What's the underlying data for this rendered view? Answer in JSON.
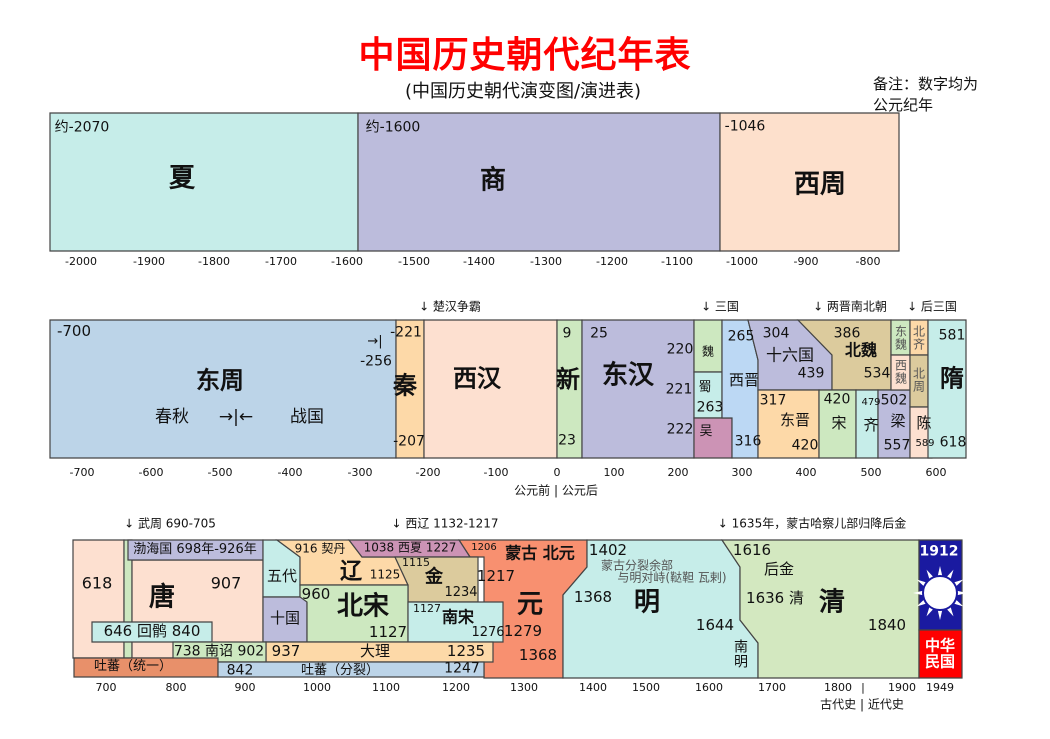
{
  "title": "中国历史朝代纪年表",
  "subtitle": "(中国历史朝代演变图/演进表)",
  "note": "备注：数字均为公元纪年",
  "row1": {
    "xia_start": "约-2070",
    "xia": "夏",
    "shang_start": "约-1600",
    "shang": "商",
    "xizhou_start": "-1046",
    "xizhou": "西周",
    "ticks": [
      "-2000",
      "-1900",
      "-1800",
      "-1700",
      "-1600",
      "-1500",
      "-1400",
      "-1300",
      "-1200",
      "-1100",
      "-1000",
      "-900",
      "-800"
    ]
  },
  "row2": {
    "annotations": [
      "↓ 楚汉争霸",
      "↓ 三国",
      "↓ 两晋南北朝",
      "↓ 后三国"
    ],
    "dongzhou_start": "-700",
    "dongzhou": "东周",
    "chunqiu": "春秋",
    "divider": "→|←",
    "zhanguo": "战国",
    "qin_arrow": "→|",
    "qin_unify": "-221",
    "zhou_end": "-256",
    "qin": "秦",
    "qin_end": "-207",
    "xihan": "西汉",
    "xin_start": "9",
    "xin": "新",
    "xin_end": "23",
    "donghan_start": "25",
    "donghan": "东汉",
    "wei_start": "220",
    "shu_start": "221",
    "wu_start": "222",
    "wei": "魏",
    "shu": "蜀",
    "shu_end": "263",
    "wu": "吴",
    "xijin_start": "265",
    "xijin": "西晋",
    "xijin_end": "316",
    "shiliuguo_start": "304",
    "shiliuguo": "十六国",
    "shiliuguo_end": "439",
    "beiwei_start": "386",
    "beiwei": "北魏",
    "beiwei_end": "534",
    "dongjin_start": "317",
    "dongjin": "东晋",
    "dongjin_end": "420",
    "song_start": "420",
    "song": "宋",
    "qi_start": "479",
    "qi": "齐",
    "liang_start": "502",
    "liang": "梁",
    "liang_end": "557",
    "dongwei": "东魏",
    "xiwei": "西魏",
    "beiqi": "北齐",
    "beizhou": "北周",
    "chen": "陈",
    "chen_end": "589",
    "sui_start": "581",
    "sui": "隋",
    "sui_end": "618",
    "era_label": "公元前 | 公元后",
    "ticks": [
      "-700",
      "-600",
      "-500",
      "-400",
      "-300",
      "-200",
      "-100",
      "0",
      "100",
      "200",
      "300",
      "400",
      "500",
      "600"
    ]
  },
  "row3": {
    "annotations": [
      "↓ 武周 690-705",
      "↓ 西辽 1132-1217",
      "↓ 1635年，蒙古哈察儿部归降后金"
    ],
    "tang_start": "618",
    "bohai": "渤海国 698年-926年",
    "tang": "唐",
    "tang_end": "907",
    "huihu": "646  回鹘  840",
    "nanzhao": "738 南诏 902",
    "tubo1": "吐蕃（统一）",
    "tubo2_start": "842",
    "tubo2": "吐蕃（分裂）",
    "tubo2_end": "1247",
    "wudai": "五代",
    "shiguo": "十国",
    "qidan": "916 契丹",
    "liao": "辽",
    "liao_end": "1125",
    "beisong_start": "960",
    "beisong": "北宋",
    "beisong_end": "1127",
    "xixia": "1038 西夏  1227",
    "jin_start": "1115",
    "jin": "金",
    "jin_end": "1234",
    "nansong_start": "1127",
    "nansong": "南宋",
    "nansong_end": "1276",
    "dali_start": "937",
    "dali": "大理",
    "dali_end": "1235",
    "mongol_start": "1206",
    "mongol": "蒙古  北元",
    "mongol_unify": "1217",
    "yuan": "元",
    "yuan_start": "1279",
    "yuan_end": "1368",
    "ming_mark": "1402",
    "mongol_split1": "蒙古分裂余部",
    "mongol_split2": "与明对峙(鞑靼  瓦剌)",
    "ming_start": "1368",
    "ming": "明",
    "ming_end": "1644",
    "nanming": "南明",
    "houjin_start": "1616",
    "houjin": "后金",
    "qing_rename": "1636  清",
    "qing": "清",
    "qing_mark": "1840",
    "roc_start": "1912",
    "roc": "中华民国",
    "era_label": "古代史 | 近代史",
    "ticks": [
      "700",
      "800",
      "900",
      "1000",
      "1100",
      "1200",
      "1300",
      "1400",
      "1500",
      "1600",
      "1700",
      "1800",
      "|",
      "1900",
      "1949"
    ]
  },
  "colors": {
    "title": "#ff0000",
    "roc_blue": "#1a1aa0",
    "roc_red": "#ff0000"
  }
}
